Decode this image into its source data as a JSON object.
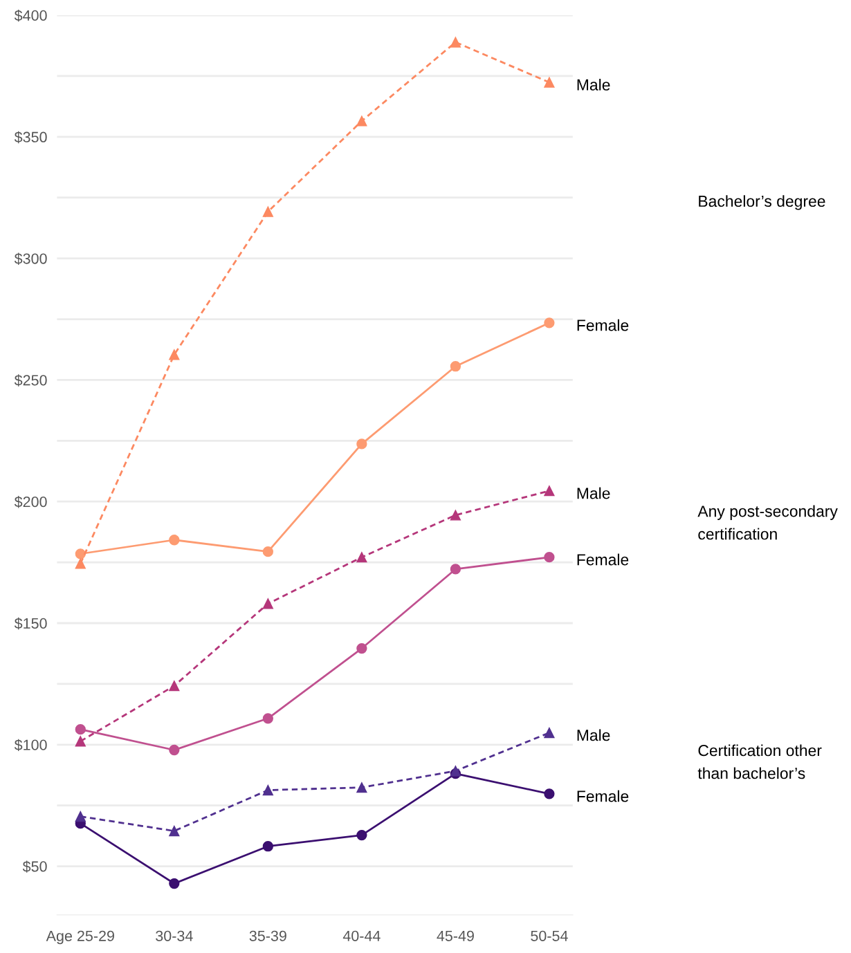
{
  "chart_data": {
    "type": "line",
    "categories": [
      "Age 25-29",
      "30-34",
      "35-39",
      "40-44",
      "45-49",
      "50-54"
    ],
    "series": [
      {
        "name": "Male",
        "color": "#fc8961",
        "marker": "triangle",
        "line_style": "dashed",
        "values": [
          174.5,
          260.4,
          319.2,
          356.5,
          388.9,
          372.4
        ]
      },
      {
        "name": "Female",
        "color": "#fd9b71",
        "marker": "circle",
        "line_style": "solid",
        "values": [
          178.5,
          184.2,
          179.4,
          223.7,
          255.6,
          273.5
        ]
      },
      {
        "name": "Male",
        "color": "#b5367a",
        "marker": "triangle",
        "line_style": "dashed",
        "values": [
          101.4,
          124.2,
          158.0,
          177.1,
          194.4,
          204.4
        ]
      },
      {
        "name": "Female",
        "color": "#c0508f",
        "marker": "circle",
        "line_style": "solid",
        "values": [
          106.3,
          97.8,
          110.8,
          139.6,
          172.2,
          177.1
        ]
      },
      {
        "name": "Male",
        "color": "#50308f",
        "marker": "triangle",
        "line_style": "dashed",
        "values": [
          70.5,
          64.5,
          81.3,
          82.4,
          89.2,
          104.9
        ]
      },
      {
        "name": "Female",
        "color": "#3b0f70",
        "marker": "circle",
        "line_style": "solid",
        "values": [
          67.6,
          42.9,
          58.2,
          62.8,
          88.1,
          79.8
        ]
      }
    ],
    "annotations": [
      "Bachelor’s degree",
      "Any post-secondary\ncertification",
      "Certification other\nthan bachelor’s"
    ],
    "ylim": [
      30,
      400
    ],
    "yticks": [
      {
        "value": 50,
        "label": "$50"
      },
      {
        "value": 75,
        "label": null
      },
      {
        "value": 100,
        "label": "$100"
      },
      {
        "value": 125,
        "label": null
      },
      {
        "value": 150,
        "label": "$150"
      },
      {
        "value": 175,
        "label": null
      },
      {
        "value": 200,
        "label": "$200"
      },
      {
        "value": 225,
        "label": null
      },
      {
        "value": 250,
        "label": "$250"
      },
      {
        "value": 275,
        "label": null
      },
      {
        "value": 300,
        "label": "$300"
      },
      {
        "value": 325,
        "label": null
      },
      {
        "value": 350,
        "label": "$350"
      },
      {
        "value": 375,
        "label": null
      },
      {
        "value": 400,
        "label": "$400"
      }
    ],
    "grid": "y",
    "legend": false
  }
}
